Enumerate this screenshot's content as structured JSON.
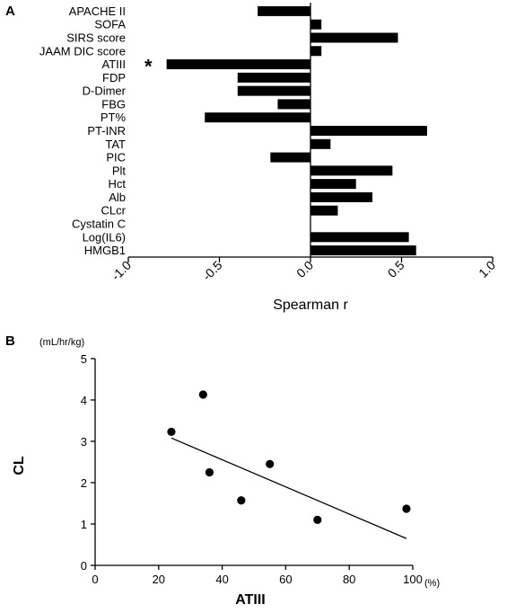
{
  "panel_a": {
    "letter": "A",
    "annotation": "*"
  },
  "panel_b": {
    "letter": "B",
    "y_unit": "(mL/hr/kg)",
    "x_unit": "(%)"
  },
  "chart_data": [
    {
      "type": "bar",
      "orientation": "horizontal",
      "categories": [
        "APACHE II",
        "SOFA",
        "SIRS score",
        "JAAM DIC score",
        "ATIII",
        "FDP",
        "D-Dimer",
        "FBG",
        "PT%",
        "PT-INR",
        "TAT",
        "PIC",
        "Plt",
        "Hct",
        "Alb",
        "CLcr",
        "Cystatin C",
        "Log(IL6)",
        "HMGB1"
      ],
      "values": [
        -0.29,
        0.06,
        0.48,
        0.06,
        -0.79,
        -0.4,
        -0.4,
        -0.18,
        -0.58,
        0.64,
        0.11,
        -0.22,
        0.45,
        0.25,
        0.34,
        0.15,
        0.0,
        0.54,
        0.58
      ],
      "xlabel": "Spearman r",
      "xlim": [
        -1.0,
        1.0
      ],
      "xticks": [
        "-1.0",
        "-0.5",
        "0.0",
        "0.5",
        "1.0"
      ],
      "annotation": {
        "category": "ATIII",
        "text": "*"
      }
    },
    {
      "type": "scatter",
      "points": [
        {
          "x": 24,
          "y": 3.23
        },
        {
          "x": 34,
          "y": 4.13
        },
        {
          "x": 36,
          "y": 2.25
        },
        {
          "x": 46,
          "y": 1.57
        },
        {
          "x": 55,
          "y": 2.45
        },
        {
          "x": 70,
          "y": 1.1
        },
        {
          "x": 98,
          "y": 1.37
        }
      ],
      "trendline": {
        "x": [
          24,
          98
        ],
        "y": [
          3.08,
          0.65
        ]
      },
      "xlabel": "ATIII",
      "ylabel": "CL",
      "xlim": [
        0,
        100
      ],
      "ylim": [
        0,
        5
      ],
      "xticks": [
        "0",
        "20",
        "40",
        "60",
        "80",
        "100"
      ],
      "yticks": [
        "0",
        "1",
        "2",
        "3",
        "4",
        "5"
      ],
      "x_unit": "(%)",
      "y_unit": "(mL/hr/kg)"
    }
  ]
}
